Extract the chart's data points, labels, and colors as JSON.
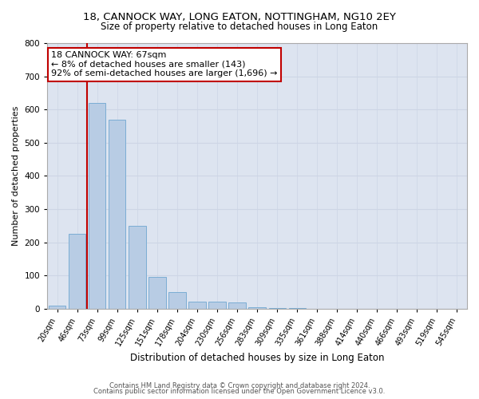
{
  "title_line1": "18, CANNOCK WAY, LONG EATON, NOTTINGHAM, NG10 2EY",
  "title_line2": "Size of property relative to detached houses in Long Eaton",
  "xlabel": "Distribution of detached houses by size in Long Eaton",
  "ylabel": "Number of detached properties",
  "bar_color": "#b8cce4",
  "bar_edge_color": "#7badd4",
  "categories": [
    "20sqm",
    "46sqm",
    "73sqm",
    "99sqm",
    "125sqm",
    "151sqm",
    "178sqm",
    "204sqm",
    "230sqm",
    "256sqm",
    "283sqm",
    "309sqm",
    "335sqm",
    "361sqm",
    "388sqm",
    "414sqm",
    "440sqm",
    "466sqm",
    "493sqm",
    "519sqm",
    "545sqm"
  ],
  "values": [
    10,
    225,
    620,
    570,
    250,
    95,
    50,
    22,
    22,
    20,
    5,
    3,
    3,
    1,
    1,
    0,
    0,
    0,
    0,
    0,
    0
  ],
  "ylim": [
    0,
    800
  ],
  "yticks": [
    0,
    100,
    200,
    300,
    400,
    500,
    600,
    700,
    800
  ],
  "annotation_line1": "18 CANNOCK WAY: 67sqm",
  "annotation_line2": "← 8% of detached houses are smaller (143)",
  "annotation_line3": "92% of semi-detached houses are larger (1,696) →",
  "vline_color": "#c00000",
  "vline_x": 1.5,
  "box_facecolor": "white",
  "box_edgecolor": "#c00000",
  "grid_color": "#cdd5e5",
  "background_color": "#dde4f0",
  "footer_line1": "Contains HM Land Registry data © Crown copyright and database right 2024.",
  "footer_line2": "Contains public sector information licensed under the Open Government Licence v3.0.",
  "title_fontsize": 9.5,
  "subtitle_fontsize": 8.5,
  "tick_fontsize": 7,
  "ylabel_fontsize": 8,
  "xlabel_fontsize": 8.5,
  "annotation_fontsize": 8,
  "footer_fontsize": 6
}
